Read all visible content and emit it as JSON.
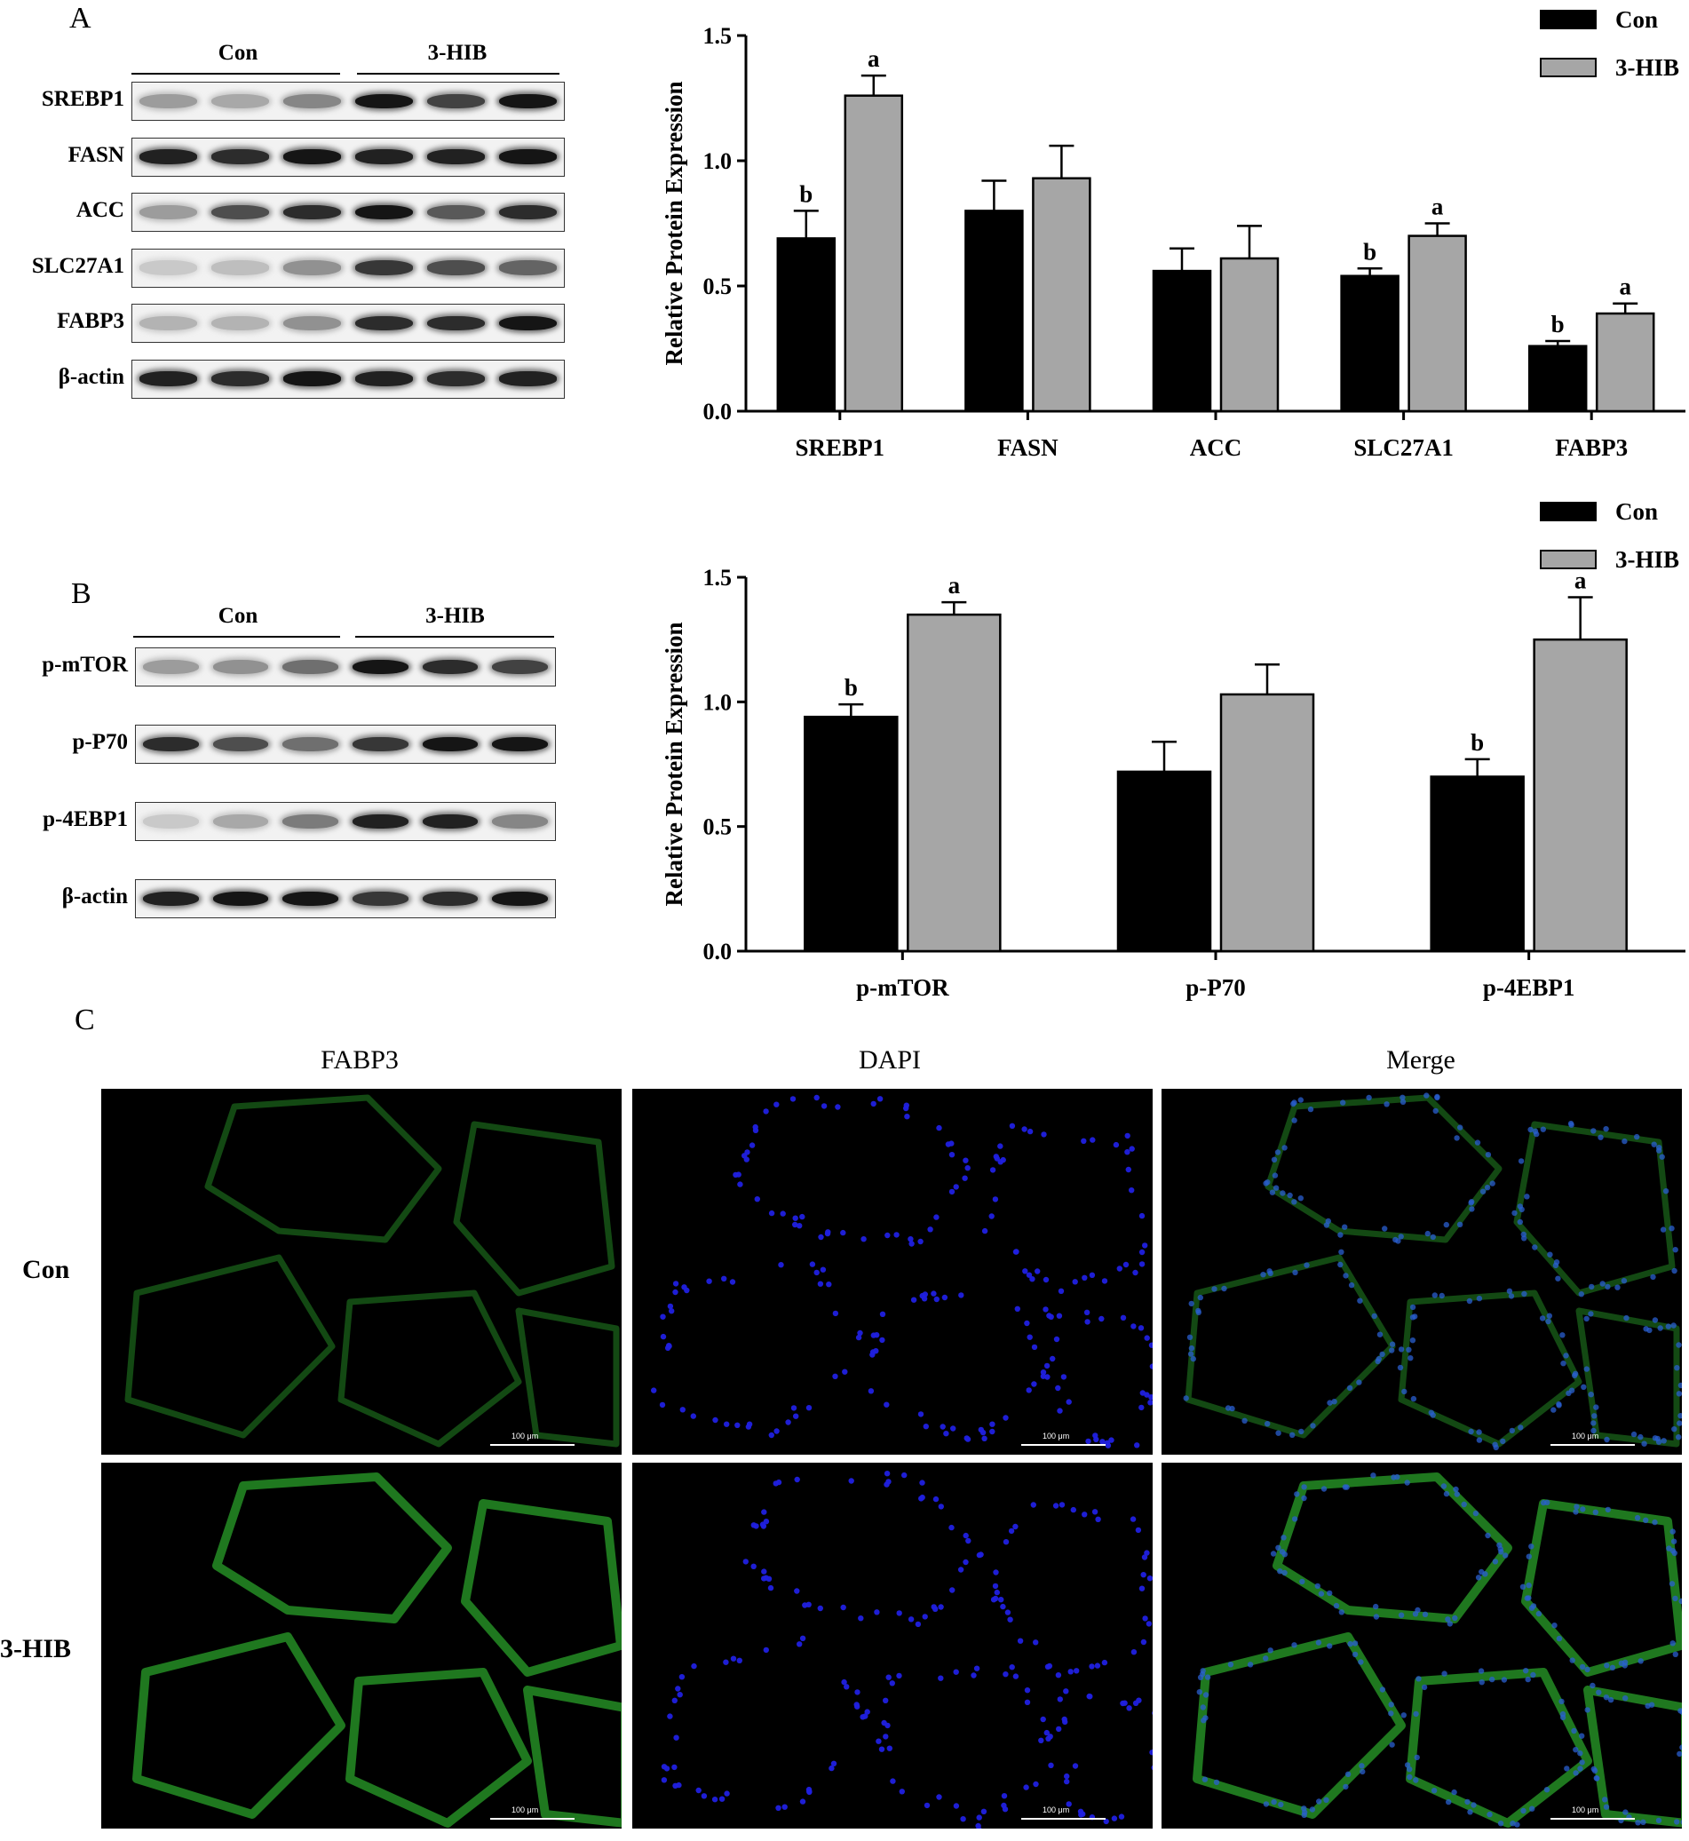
{
  "panels": {
    "a": {
      "letter": "A",
      "groups": [
        "Con",
        "3-HIB"
      ],
      "blots": [
        {
          "label": "SREBP1",
          "intensities": [
            0.35,
            0.3,
            0.45,
            0.95,
            0.75,
            0.95
          ]
        },
        {
          "label": "FASN",
          "intensities": [
            0.9,
            0.85,
            0.95,
            0.9,
            0.9,
            0.95
          ]
        },
        {
          "label": "ACC",
          "intensities": [
            0.35,
            0.7,
            0.85,
            0.95,
            0.65,
            0.85
          ]
        },
        {
          "label": "SLC27A1",
          "intensities": [
            0.15,
            0.2,
            0.4,
            0.8,
            0.7,
            0.6
          ]
        },
        {
          "label": "FABP3",
          "intensities": [
            0.25,
            0.25,
            0.4,
            0.85,
            0.85,
            0.95
          ]
        },
        {
          "label": "β-actin",
          "intensities": [
            0.9,
            0.85,
            0.95,
            0.9,
            0.85,
            0.9
          ]
        }
      ]
    },
    "b": {
      "letter": "B",
      "groups": [
        "Con",
        "3-HIB"
      ],
      "blots": [
        {
          "label": "p-mTOR",
          "intensities": [
            0.35,
            0.4,
            0.55,
            0.95,
            0.85,
            0.75
          ]
        },
        {
          "label": "p-P70",
          "intensities": [
            0.85,
            0.7,
            0.55,
            0.8,
            0.95,
            0.95
          ]
        },
        {
          "label": "p-4EBP1",
          "intensities": [
            0.15,
            0.3,
            0.5,
            0.9,
            0.9,
            0.45
          ]
        },
        {
          "label": "β-actin",
          "intensities": [
            0.9,
            0.95,
            0.95,
            0.8,
            0.85,
            0.95
          ]
        }
      ]
    },
    "c": {
      "letter": "C",
      "columns": [
        "FABP3",
        "DAPI",
        "Merge"
      ],
      "rows": [
        "Con",
        "3-HIB"
      ],
      "scale_bar": "100 μm"
    }
  },
  "chart_data": [
    {
      "type": "bar",
      "ylabel": "Relative Protein Expression",
      "ylim": [
        0,
        1.5
      ],
      "yticks": [
        "0.0",
        "0.5",
        "1.0",
        "1.5"
      ],
      "categories": [
        "SREBP1",
        "FASN",
        "ACC",
        "SLC27A1",
        "FABP3"
      ],
      "series": [
        {
          "name": "Con",
          "values": [
            0.69,
            0.8,
            0.56,
            0.54,
            0.26
          ],
          "errors": [
            0.11,
            0.12,
            0.09,
            0.03,
            0.02
          ],
          "letters": [
            "b",
            "",
            "",
            "b",
            "b"
          ],
          "color": "#000000"
        },
        {
          "name": "3-HIB",
          "values": [
            1.26,
            0.93,
            0.61,
            0.7,
            0.39
          ],
          "errors": [
            0.08,
            0.13,
            0.13,
            0.05,
            0.04
          ],
          "letters": [
            "a",
            "",
            "",
            "a",
            "a"
          ],
          "color": "#a6a6a6"
        }
      ],
      "legend": "top-right"
    },
    {
      "type": "bar",
      "ylabel": "Relative Protein Expression",
      "ylim": [
        0,
        1.5
      ],
      "yticks": [
        "0.0",
        "0.5",
        "1.0",
        "1.5"
      ],
      "categories": [
        "p-mTOR",
        "p-P70",
        "p-4EBP1"
      ],
      "series": [
        {
          "name": "Con",
          "values": [
            0.94,
            0.72,
            0.7
          ],
          "errors": [
            0.05,
            0.12,
            0.07
          ],
          "letters": [
            "b",
            "",
            "b"
          ],
          "color": "#000000"
        },
        {
          "name": "3-HIB",
          "values": [
            1.35,
            1.03,
            1.25
          ],
          "errors": [
            0.05,
            0.12,
            0.17
          ],
          "letters": [
            "a",
            "",
            "a"
          ],
          "color": "#a6a6a6"
        }
      ],
      "legend": "top-right"
    }
  ]
}
